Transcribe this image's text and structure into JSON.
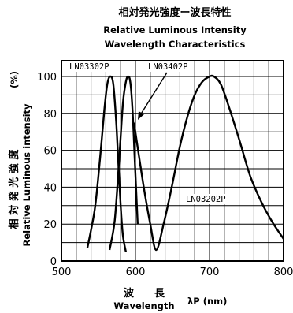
{
  "title": {
    "jp": "相対発光強度ー波長特性",
    "en1": "Relative  Luminous  Intensity",
    "en2": "Wavelength    Characteristics"
  },
  "ylabel": {
    "jp": "相 対 発 光 強 度",
    "en": "Relative  Luminous  intensity",
    "unit": "(%)"
  },
  "xlabel": {
    "jp": "波　　長",
    "en": "Wavelength",
    "unit": "λP (nm)"
  },
  "chart_data": {
    "type": "line",
    "title": "Relative Luminous Intensity Wavelength Characteristics",
    "xlabel": "Wavelength λP (nm)",
    "ylabel": "Relative Luminous intensity (%)",
    "xlim": [
      500,
      800
    ],
    "ylim": [
      0,
      100
    ],
    "xticks": [
      500,
      600,
      700,
      800
    ],
    "yticks": [
      0,
      20,
      40,
      60,
      80,
      100
    ],
    "grid": true,
    "series": [
      {
        "name": "LN03302P",
        "x": [
          535,
          545,
          552,
          558,
          562,
          566,
          570,
          574,
          577,
          580,
          583,
          587
        ],
        "y": [
          7,
          28,
          55,
          82,
          96,
          100,
          96,
          75,
          52,
          30,
          14,
          5
        ]
      },
      {
        "name": "LN03402P",
        "x": [
          565,
          572,
          578,
          583,
          587,
          590,
          593,
          596,
          599,
          603
        ],
        "y": [
          6,
          22,
          55,
          85,
          97,
          100,
          97,
          82,
          55,
          20
        ]
      },
      {
        "name": "LN03202P",
        "x": [
          598,
          610,
          620,
          628,
          638,
          650,
          660,
          670,
          680,
          690,
          700,
          706,
          715,
          725,
          740,
          755,
          770,
          785,
          800
        ],
        "y": [
          75,
          43,
          20,
          6,
          20,
          42,
          62,
          78,
          90,
          97,
          100,
          100,
          96,
          85,
          66,
          46,
          32,
          21,
          12
        ]
      }
    ],
    "annotations": [
      "LN03302P",
      "LN03402P",
      "LN03202P"
    ]
  }
}
